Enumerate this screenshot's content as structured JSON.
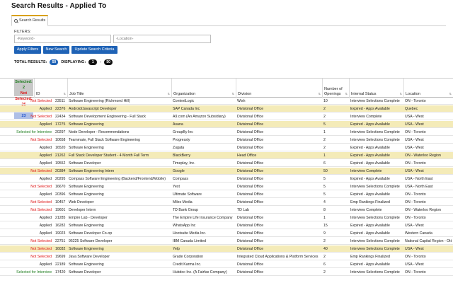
{
  "page": {
    "title": "Search Results - Applied To"
  },
  "tabs": [
    {
      "label": "Search Results"
    }
  ],
  "filters": {
    "label": "FILTERS:",
    "keyword_placeholder": "-Keyword-",
    "location_placeholder": "-Location-",
    "buttons": {
      "apply": "Apply Filters",
      "new_search": "New Search",
      "update": "Update Search Criteria"
    }
  },
  "totals": {
    "total_label": "TOTAL RESULTS:",
    "total": "50",
    "displaying_label": "DISPLAYING:",
    "from": "1",
    "to": "50"
  },
  "summary": {
    "selected": "Selected: 2",
    "not_selected": "Not Selected: 26",
    "remaining": "Remaining: 23"
  },
  "columns": {
    "id": "ID",
    "title": "Job Title",
    "org": "Organization",
    "division": "Division",
    "openings": "Number of Openings",
    "status": "Internal Status",
    "location": "Location"
  },
  "icons": {
    "tab": "search-icon",
    "sort": "sort-arrows-icon"
  },
  "colors": {
    "highlight": "#f4ebb8",
    "button": "#1f63b6",
    "not_selected": "#d11111",
    "selected": "#1b7b1b",
    "tab_accent": "#d9a000"
  },
  "rows": [
    {
      "status": "Not Selected",
      "id": "23511",
      "title": "Software Engineering (Richmond Hill)",
      "org": "ContextLogic",
      "division": "Wish",
      "openings": "10",
      "internal": "Interview Selections Complete",
      "location": "ON - Toronto",
      "hl": false
    },
    {
      "status": "Applied",
      "id": "22376",
      "title": "Android/Javascript Developer",
      "org": "SAP Canada Inc",
      "division": "Divisional Office",
      "openings": "2",
      "internal": "Expired - Apps Available",
      "location": "Quebec",
      "hl": true
    },
    {
      "status": "Not Selected",
      "id": "22434",
      "title": "Software Development Engineering - Full Stack",
      "org": "A9.com (An Amazon Subsidiary)",
      "division": "Divisional Office",
      "openings": "2",
      "internal": "Interview Complete",
      "location": "USA - West",
      "hl": false
    },
    {
      "status": "Applied",
      "id": "17275",
      "title": "Software Engineering",
      "org": "Asana",
      "division": "Divisional Office",
      "openings": "5",
      "internal": "Expired - Apps Available",
      "location": "USA - West",
      "hl": true
    },
    {
      "status": "Selected for Interview",
      "id": "20297",
      "title": "Node Developer - Recommendations",
      "org": "GroupBy Inc",
      "division": "Divisional Office",
      "openings": "1",
      "internal": "Interview Selections Complete",
      "location": "ON - Toronto",
      "hl": false
    },
    {
      "status": "Not Selected",
      "id": "10658",
      "title": "Teammate, Full Stack Software Engineering",
      "org": "Progressly",
      "division": "Divisional Office",
      "openings": "2",
      "internal": "Interview Selections Complete",
      "location": "USA - West",
      "hl": false
    },
    {
      "status": "Applied",
      "id": "16520",
      "title": "Software Engineering",
      "org": "Zugata",
      "division": "Divisional Office",
      "openings": "2",
      "internal": "Expired - Apps Available",
      "location": "USA - West",
      "hl": false
    },
    {
      "status": "Applied",
      "id": "21262",
      "title": "Full Stack Developer Student - 4 Month Fall Term",
      "org": "BlackBerry",
      "division": "Head Office",
      "openings": "1",
      "internal": "Expired - Apps Available",
      "location": "ON - Waterloo Region",
      "hl": true
    },
    {
      "status": "Applied",
      "id": "19552",
      "title": "Software Developer",
      "org": "Timeplay, Inc.",
      "division": "Divisional Office",
      "openings": "6",
      "internal": "Expired - Apps Available",
      "location": "ON - Toronto",
      "hl": false
    },
    {
      "status": "Not Selected",
      "id": "20384",
      "title": "Software Engineering Intern",
      "org": "Google",
      "division": "Divisional Office",
      "openings": "50",
      "internal": "Interview Complete",
      "location": "USA - West",
      "hl": true
    },
    {
      "status": "Applied",
      "id": "20295",
      "title": "Compass Software Engineering (Backend/Frontend/Mobile)",
      "org": "Compass",
      "division": "Divisional Office",
      "openings": "5",
      "internal": "Expired - Apps Available",
      "location": "USA - North East",
      "hl": false
    },
    {
      "status": "Not Selected",
      "id": "16670",
      "title": "Software Engineering",
      "org": "Yext",
      "division": "Divisional Office",
      "openings": "5",
      "internal": "Interview Selections Complete",
      "location": "USA - North East",
      "hl": false
    },
    {
      "status": "Applied",
      "id": "20396",
      "title": "Software Engineering",
      "org": "Ultimate Software",
      "division": "Divisional Office",
      "openings": "5",
      "internal": "Expired - Apps Available",
      "location": "ON - Toronto",
      "hl": false
    },
    {
      "status": "Not Selected",
      "id": "10457",
      "title": "Web Developer",
      "org": "Miles Media",
      "division": "Divisional Office",
      "openings": "4",
      "internal": "Emp Rankings Finalized",
      "location": "ON - Toronto",
      "hl": false
    },
    {
      "status": "Not Selected",
      "id": "19601",
      "title": "Developer Intern",
      "org": "TD Bank Group",
      "division": "TD Lab",
      "openings": "8",
      "internal": "Interview Complete",
      "location": "ON - Waterloo Region",
      "hl": false
    },
    {
      "status": "Applied",
      "id": "21285",
      "title": "Empire Lab - Developer",
      "org": "The Empire Life Insurance Company",
      "division": "Divisional Office",
      "openings": "1",
      "internal": "Interview Selections Complete",
      "location": "ON - Toronto",
      "hl": false
    },
    {
      "status": "Applied",
      "id": "16282",
      "title": "Software Engineering",
      "org": "WhatsApp Inc",
      "division": "Divisional Office",
      "openings": "15",
      "internal": "Expired - Apps Available",
      "location": "USA - West",
      "hl": false
    },
    {
      "status": "Applied",
      "id": "19023",
      "title": "Software Developer Co-op",
      "org": "Hootsuite Media Inc.",
      "division": "Divisional Office",
      "openings": "9",
      "internal": "Expired - Apps Available",
      "location": "Western Canada",
      "hl": false
    },
    {
      "status": "Not Selected",
      "id": "22751",
      "title": "95225 Software Developer",
      "org": "IBM Canada Limited",
      "division": "Divisional Office",
      "openings": "2",
      "internal": "Interview Selections Complete",
      "location": "National Capital Region - Ott",
      "hl": false
    },
    {
      "status": "Not Selected",
      "id": "16032",
      "title": "Software Engineering",
      "org": "Yelp",
      "division": "Divisional Office",
      "openings": "40",
      "internal": "Interview Selections Complete",
      "location": "USA - West",
      "hl": true
    },
    {
      "status": "Not Selected",
      "id": "19699",
      "title": "Java Software Developer",
      "org": "Grade Corporation",
      "division": "Integrated Cloud Applications & Platform Services",
      "openings": "2",
      "internal": "Emp Rankings Finalized",
      "location": "ON - Toronto",
      "hl": false
    },
    {
      "status": "Applied",
      "id": "22189",
      "title": "Software Engineering",
      "org": "Credit Karma Inc.",
      "division": "Divisional Office",
      "openings": "6",
      "internal": "Expired - Apps Available",
      "location": "USA - West",
      "hl": false
    },
    {
      "status": "Selected for Interview",
      "id": "17420",
      "title": "Software Developer",
      "org": "Hubdoc Inc. (A Fairfax Company)",
      "division": "Divisional Office",
      "openings": "2",
      "internal": "Interview Selections Complete",
      "location": "ON - Toronto",
      "hl": false
    }
  ]
}
